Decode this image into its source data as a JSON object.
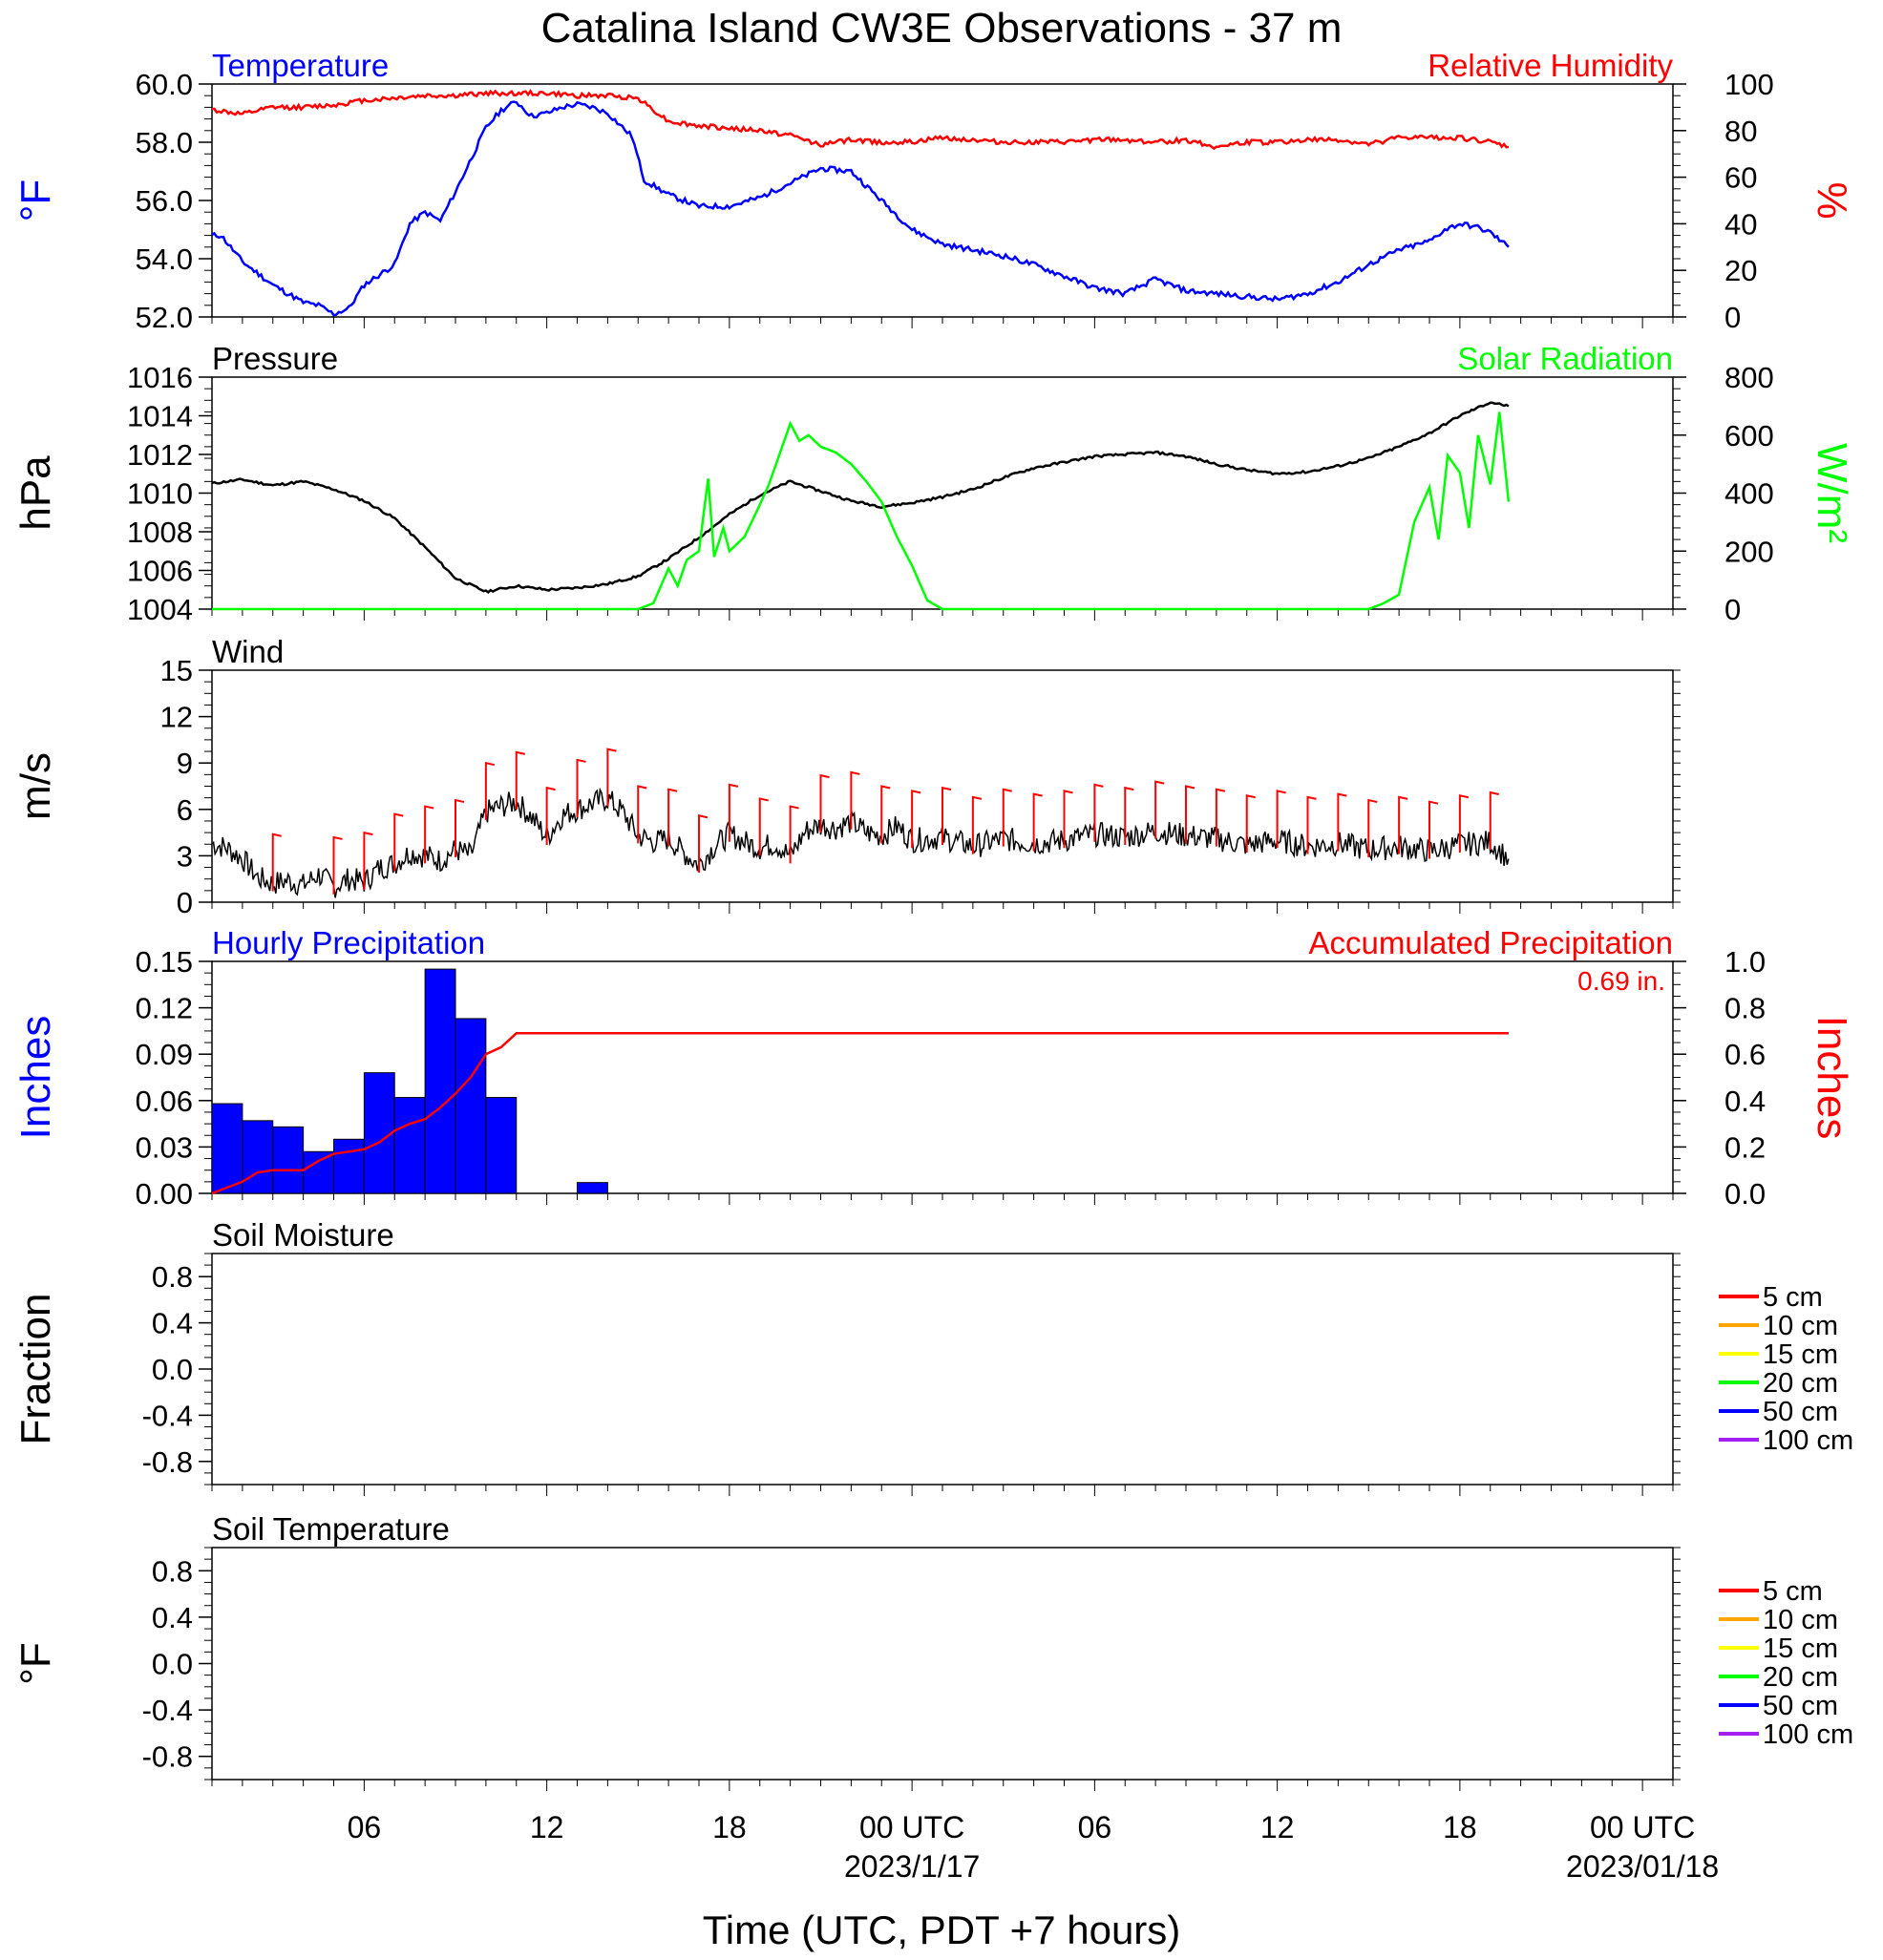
{
  "title": "Catalina Island CW3E Observations - 37 m",
  "xaxis_label": "Time (UTC, PDT +7 hours)",
  "time_ticks": [
    {
      "hour": 5,
      "label": "06",
      "sub": ""
    },
    {
      "hour": 11,
      "label": "12",
      "sub": ""
    },
    {
      "hour": 17,
      "label": "18",
      "sub": ""
    },
    {
      "hour": 23,
      "label": "00 UTC",
      "sub": "2023/1/17"
    },
    {
      "hour": 29,
      "label": "06",
      "sub": ""
    },
    {
      "hour": 35,
      "label": "12",
      "sub": ""
    },
    {
      "hour": 41,
      "label": "18",
      "sub": ""
    },
    {
      "hour": 47,
      "label": "00 UTC",
      "sub": "2023/01/18"
    }
  ],
  "colors": {
    "temperature": "#0000ff",
    "humidity": "#ff0000",
    "pressure": "#000000",
    "solar": "#00ff00",
    "wind": "#000000",
    "wind_barbs": "#ff0000",
    "precip_bars": "#0000ff",
    "accum_precip": "#ff0000"
  },
  "chart_data": [
    {
      "type": "line",
      "panel": "temperature_humidity",
      "left_title": "Temperature",
      "right_title": "Relative Humidity",
      "ylabel_left": "°F",
      "ylabel_right": "%",
      "ylim_left": [
        52,
        60
      ],
      "ylim_right": [
        0,
        100
      ],
      "yticks_left": [
        "52.0",
        "54.0",
        "56.0",
        "58.0",
        "60.0"
      ],
      "yticks_right": [
        "0",
        "20",
        "40",
        "60",
        "80",
        "100"
      ],
      "xlim_hours": [
        0,
        48
      ],
      "series": [
        {
          "name": "Temperature",
          "axis": "left",
          "x": [
            0,
            0.3,
            1,
            2,
            3,
            3.5,
            4,
            4.5,
            5,
            6,
            6.5,
            7,
            7.5,
            8,
            9,
            9.5,
            10,
            10.5,
            11,
            11.5,
            12,
            12.5,
            13,
            13.8,
            14.2,
            15,
            16,
            17,
            18,
            19,
            20,
            21,
            22,
            23,
            24,
            25,
            26,
            27,
            28,
            29,
            30,
            31,
            32,
            33,
            34,
            35,
            36,
            37,
            38,
            39,
            40,
            40.5,
            41,
            41.5,
            42,
            42.6
          ],
          "y": [
            54.8,
            54.8,
            53.9,
            53.1,
            52.5,
            52.4,
            52.1,
            52.3,
            53.1,
            53.8,
            55.2,
            55.6,
            55.3,
            56.3,
            58.5,
            59.1,
            59.4,
            58.9,
            59.0,
            59.2,
            59.3,
            59.2,
            59.0,
            58.2,
            56.7,
            56.2,
            55.8,
            55.8,
            56.1,
            56.6,
            57.1,
            57.0,
            56.0,
            55.0,
            54.5,
            54.3,
            54.1,
            53.8,
            53.4,
            53.0,
            52.8,
            53.3,
            52.9,
            52.8,
            52.7,
            52.6,
            52.8,
            53.2,
            53.8,
            54.3,
            54.6,
            55.0,
            55.2,
            55.1,
            54.9,
            54.4
          ]
        },
        {
          "name": "Relative Humidity",
          "axis": "right",
          "x": [
            0,
            1,
            2,
            3,
            4,
            5,
            6,
            7,
            8,
            9,
            10,
            11,
            12,
            13,
            14,
            15,
            16,
            17,
            18,
            19,
            20,
            21,
            22,
            23,
            24,
            25,
            26,
            27,
            28,
            29,
            30,
            31,
            32,
            33,
            34,
            35,
            36,
            37,
            38,
            39,
            40,
            41,
            42,
            42.6
          ],
          "y": [
            89,
            87,
            90,
            90,
            91,
            93,
            94,
            95,
            95,
            96,
            96,
            96,
            95,
            95,
            94,
            84,
            82,
            81,
            80,
            78,
            74,
            76,
            75,
            75,
            77,
            76,
            75,
            75,
            75,
            76,
            76,
            75,
            76,
            73,
            75,
            75,
            76,
            76,
            74,
            77,
            77,
            77,
            75,
            73
          ]
        }
      ]
    },
    {
      "type": "line",
      "panel": "pressure_solar",
      "left_title": "Pressure",
      "right_title": "Solar Radiation",
      "ylabel_left": "hPa",
      "ylabel_right": "W/m²",
      "ylim_left": [
        1004,
        1016
      ],
      "ylim_right": [
        0,
        800
      ],
      "yticks_left": [
        "1004",
        "1006",
        "1008",
        "1010",
        "1012",
        "1014",
        "1016"
      ],
      "yticks_right": [
        "0",
        "200",
        "400",
        "600",
        "800"
      ],
      "xlim_hours": [
        0,
        48
      ],
      "series": [
        {
          "name": "Pressure",
          "axis": "left",
          "x": [
            0,
            1,
            2,
            3,
            4,
            5,
            6,
            7,
            8,
            9,
            10,
            11,
            12,
            13,
            14,
            15,
            16,
            17,
            18,
            19,
            20,
            21,
            22,
            23,
            24,
            25,
            26,
            27,
            28,
            29,
            30,
            31,
            32,
            33,
            34,
            35,
            36,
            37,
            38,
            39,
            40,
            41,
            42,
            42.6
          ],
          "y": [
            1010.5,
            1010.7,
            1010.4,
            1010.6,
            1010.2,
            1009.6,
            1008.7,
            1007.2,
            1005.6,
            1004.9,
            1005.2,
            1005.0,
            1005.1,
            1005.3,
            1005.7,
            1006.6,
            1007.7,
            1008.9,
            1009.9,
            1010.6,
            1010.1,
            1009.6,
            1009.3,
            1009.5,
            1009.8,
            1010.2,
            1010.8,
            1011.3,
            1011.6,
            1011.9,
            1012.0,
            1012.1,
            1011.9,
            1011.5,
            1011.2,
            1011.0,
            1011.1,
            1011.4,
            1011.8,
            1012.4,
            1013.1,
            1014.0,
            1014.7,
            1014.5
          ]
        },
        {
          "name": "Solar Radiation",
          "axis": "right",
          "x": [
            0,
            14,
            14.5,
            15,
            15.3,
            15.6,
            16,
            16.3,
            16.5,
            16.8,
            17,
            17.5,
            18,
            18.3,
            18.6,
            19,
            19.3,
            19.6,
            20,
            20.5,
            21,
            21.5,
            22,
            22.5,
            23,
            23.5,
            24,
            25,
            30,
            35,
            38,
            38.5,
            39,
            39.5,
            40,
            40.3,
            40.6,
            41,
            41.3,
            41.6,
            42,
            42.3,
            42.6
          ],
          "y": [
            0,
            0,
            20,
            140,
            80,
            170,
            200,
            450,
            180,
            280,
            200,
            250,
            360,
            430,
            520,
            640,
            580,
            600,
            560,
            540,
            500,
            440,
            370,
            250,
            150,
            30,
            0,
            0,
            0,
            0,
            0,
            20,
            50,
            300,
            420,
            240,
            530,
            470,
            280,
            600,
            430,
            680,
            370
          ]
        }
      ]
    },
    {
      "type": "line",
      "panel": "wind",
      "left_title": "Wind",
      "ylabel_left": "m/s",
      "ylim_left": [
        0,
        15
      ],
      "yticks_left": [
        "0",
        "3",
        "6",
        "9",
        "12",
        "15"
      ],
      "xlim_hours": [
        0,
        48
      ],
      "series": [
        {
          "name": "Wind",
          "axis": "left",
          "x": [
            0,
            0.5,
            1,
            1.5,
            2,
            2.5,
            3,
            3.5,
            4,
            4.5,
            5,
            5.5,
            6,
            6.5,
            7,
            7.5,
            8,
            8.5,
            9,
            9.5,
            10,
            10.5,
            11,
            11.5,
            12,
            12.5,
            13,
            13.5,
            14,
            14.5,
            15,
            15.5,
            16,
            16.5,
            17,
            17.5,
            18,
            18.5,
            19,
            19.5,
            20,
            20.5,
            21,
            21.5,
            22,
            22.5,
            23,
            24,
            25,
            26,
            27,
            28,
            29,
            30,
            31,
            32,
            33,
            34,
            35,
            36,
            37,
            38,
            39,
            40,
            41,
            42,
            42.6
          ],
          "y": [
            3.8,
            3.5,
            2.8,
            1.6,
            1.2,
            1.4,
            1.1,
            1.8,
            1.0,
            1.5,
            1.3,
            2.2,
            2.5,
            3.2,
            3.0,
            2.7,
            3.4,
            3.0,
            5.8,
            6.2,
            6.5,
            5.5,
            4.2,
            5.6,
            6.0,
            6.4,
            6.7,
            5.8,
            4.3,
            3.9,
            4.1,
            3.2,
            2.4,
            3.6,
            4.4,
            3.9,
            3.5,
            3.8,
            3.0,
            4.6,
            5.0,
            4.8,
            5.2,
            4.5,
            4.3,
            4.9,
            4.0,
            4.2,
            3.6,
            4.1,
            3.8,
            4.0,
            4.4,
            4.2,
            4.6,
            4.3,
            4.1,
            3.7,
            4.0,
            3.6,
            3.8,
            3.4,
            3.6,
            3.3,
            3.7,
            3.9,
            2.8
          ]
        }
      ],
      "barb_hours": [
        2,
        4,
        5,
        6,
        7,
        8,
        9,
        10,
        11,
        12,
        13,
        14,
        15,
        16,
        17,
        18,
        19,
        20,
        21,
        22,
        23,
        24,
        25,
        26,
        27,
        28,
        29,
        30,
        31,
        32,
        33,
        34,
        35,
        36,
        37,
        38,
        39,
        40,
        41,
        42
      ]
    },
    {
      "type": "bar",
      "panel": "precipitation",
      "left_title": "Hourly Precipitation",
      "right_title": "Accumulated Precipitation",
      "total_label": "0.69 in.",
      "ylabel_left": "Inches",
      "ylabel_right": "Inches",
      "ylim_left": [
        0,
        0.15
      ],
      "ylim_right": [
        0,
        1.0
      ],
      "yticks_left": [
        "0.00",
        "0.03",
        "0.06",
        "0.09",
        "0.12",
        "0.15"
      ],
      "yticks_right": [
        "0.0",
        "0.2",
        "0.4",
        "0.6",
        "0.8",
        "1.0"
      ],
      "xlim_hours": [
        0,
        48
      ],
      "bar_start_hours": [
        0,
        1,
        2,
        3,
        4,
        5,
        6,
        7,
        8,
        9,
        10,
        11,
        12,
        13
      ],
      "values": [
        0.058,
        0.047,
        0.043,
        0.027,
        0.035,
        0.078,
        0.062,
        0.145,
        0.113,
        0.062,
        0,
        0,
        0.007,
        0
      ],
      "series": [
        {
          "name": "Accumulated Precipitation",
          "axis": "right",
          "x": [
            0,
            1,
            1.5,
            2,
            3,
            3.5,
            4,
            5,
            5.5,
            6,
            6.5,
            7,
            7.5,
            8,
            8.5,
            9,
            9.5,
            10,
            12,
            13,
            14,
            42.6
          ],
          "y": [
            0.0,
            0.05,
            0.09,
            0.1,
            0.1,
            0.14,
            0.17,
            0.19,
            0.22,
            0.27,
            0.3,
            0.32,
            0.37,
            0.43,
            0.5,
            0.6,
            0.63,
            0.69,
            0.69,
            0.69,
            0.69,
            0.69
          ]
        }
      ]
    },
    {
      "type": "line",
      "panel": "soil_moisture",
      "left_title": "Soil Moisture",
      "ylabel_left": "Fraction",
      "ylim_left": [
        -1,
        1
      ],
      "yticks_left": [
        "-0.8",
        "-0.4",
        "0.0",
        "0.4",
        "0.8"
      ],
      "legend": [
        "5 cm",
        "10 cm",
        "15 cm",
        "20 cm",
        "50 cm",
        "100 cm"
      ],
      "legend_colors": [
        "#ff0000",
        "#ffa500",
        "#ffff00",
        "#00ff00",
        "#0000ff",
        "#a020f0"
      ],
      "series": []
    },
    {
      "type": "line",
      "panel": "soil_temperature",
      "left_title": "Soil Temperature",
      "ylabel_left": "°F",
      "ylim_left": [
        -1,
        1
      ],
      "yticks_left": [
        "-0.8",
        "-0.4",
        "0.0",
        "0.4",
        "0.8"
      ],
      "legend": [
        "5 cm",
        "10 cm",
        "15 cm",
        "20 cm",
        "50 cm",
        "100 cm"
      ],
      "legend_colors": [
        "#ff0000",
        "#ffa500",
        "#ffff00",
        "#00ff00",
        "#0000ff",
        "#a020f0"
      ],
      "series": []
    }
  ]
}
